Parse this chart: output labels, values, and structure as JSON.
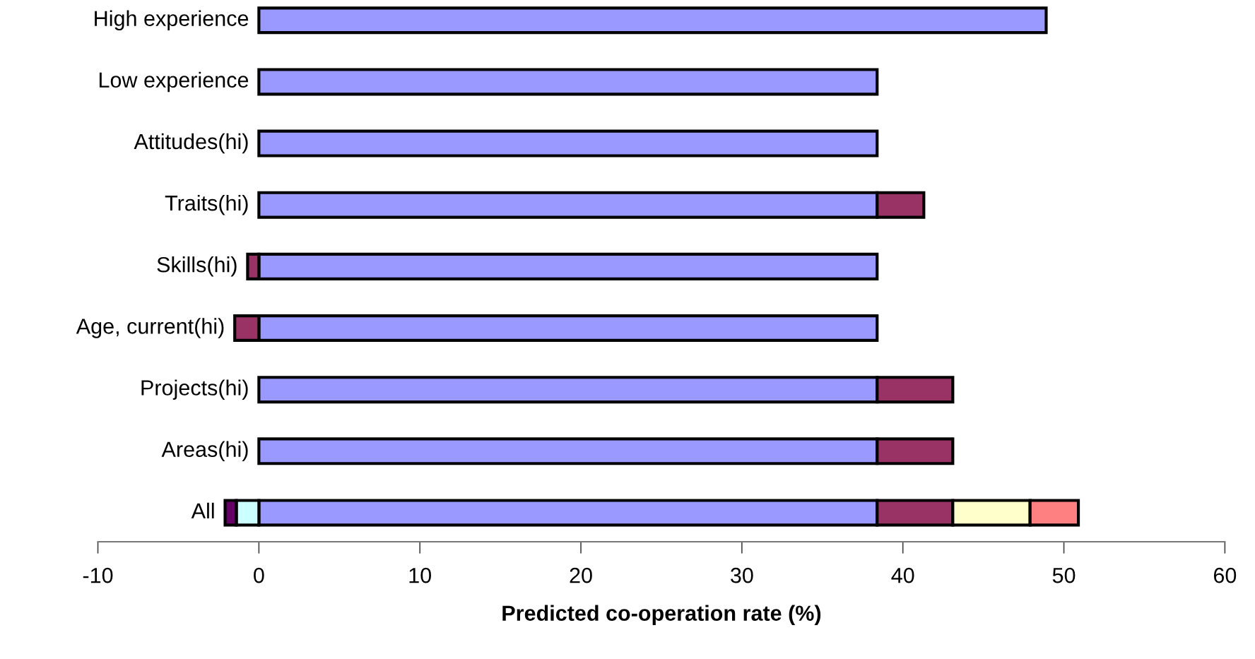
{
  "chart_data": {
    "type": "bar",
    "orientation": "horizontal",
    "stacked": true,
    "xlabel": "Predicted co-operation rate (%)",
    "categories": [
      "High experience",
      "Low experience",
      "Attitudes(hi)",
      "Traits(hi)",
      "Skills(hi)",
      "Age, current(hi)",
      "Projects(hi)",
      "Areas(hi)",
      "All"
    ],
    "series": [
      {
        "color": "#9999ff",
        "values": [
          48.9,
          38.4,
          38.4,
          38.4,
          38.4,
          38.4,
          38.4,
          38.4,
          38.4
        ]
      },
      {
        "color": "#993366",
        "values": [
          null,
          null,
          null,
          2.9,
          -0.7,
          -1.5,
          4.7,
          4.7,
          4.7
        ]
      },
      {
        "color": "#ccffff",
        "values": [
          null,
          null,
          null,
          null,
          null,
          null,
          null,
          null,
          -1.4
        ]
      },
      {
        "color": "#ffffcc",
        "values": [
          null,
          null,
          null,
          null,
          null,
          null,
          null,
          null,
          4.8
        ]
      },
      {
        "color": "#660066",
        "values": [
          null,
          null,
          null,
          null,
          null,
          null,
          null,
          null,
          -0.7
        ]
      },
      {
        "color": "#ff8080",
        "values": [
          null,
          null,
          null,
          null,
          null,
          null,
          null,
          null,
          3.0
        ]
      }
    ],
    "xlim": [
      -10,
      60
    ],
    "xticks": [
      -10,
      0,
      10,
      20,
      30,
      40,
      50,
      60
    ],
    "grid": false,
    "legend": false
  }
}
